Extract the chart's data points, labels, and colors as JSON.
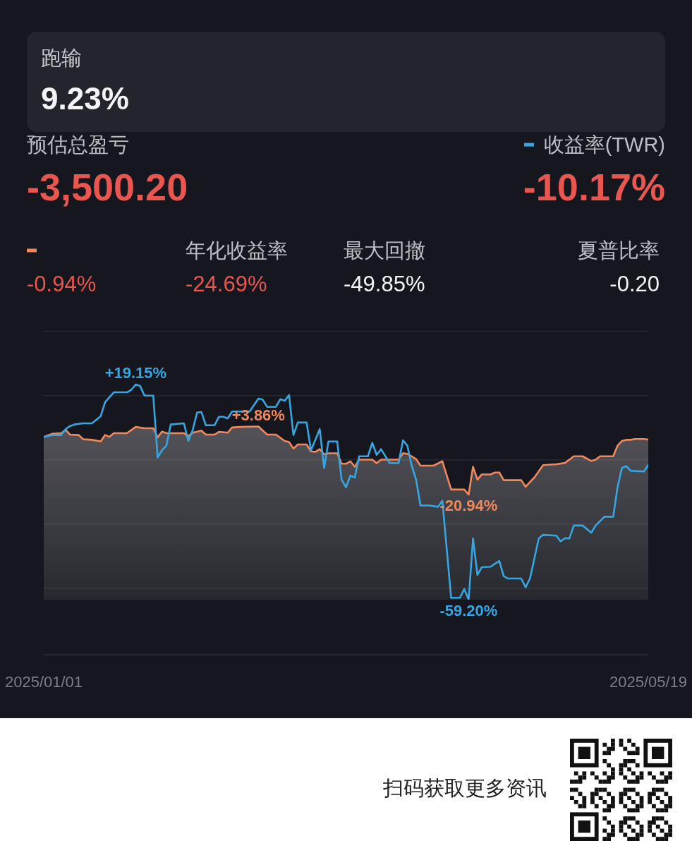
{
  "chart_data": {
    "type": "line",
    "legend": "top right",
    "grid": "y",
    "tick_labels": "x",
    "marker": "none",
    "xlim": [
      "2025-01-01",
      "2025-05-19"
    ],
    "xticks": [
      {
        "value": "2025-01-01",
        "label": "2025/01/01"
      },
      {
        "value": "2025-05-19",
        "label": "2025/05/19"
      }
    ],
    "ylim": [
      -59.2,
      38.4
    ],
    "yticks": [
      {
        "value": 38.4,
        "label": null
      },
      {
        "value": 15.1,
        "label": null
      },
      {
        "value": -8.3,
        "label": null
      },
      {
        "value": -31.7,
        "label": null
      },
      {
        "value": -55.1,
        "label": null
      }
    ],
    "annotations": [
      "跑输",
      "9.23%",
      "预估总盈亏",
      "-3,500.20",
      "-10.17%",
      "-0.94%",
      "年化收益率",
      "-24.69%",
      "最大回撤",
      "-49.85%",
      "夏普比率",
      "-0.20",
      "扫码获取更多资讯"
    ],
    "series": [
      {
        "name": "收益率(TWR)",
        "color": "#36a6e2",
        "x": [
          "2025-01-01",
          "2025-01-03",
          "2025-01-05",
          "2025-01-06",
          "2025-01-07",
          "2025-01-08",
          "2025-01-10",
          "2025-01-12",
          "2025-01-14",
          "2025-01-15",
          "2025-01-17",
          "2025-01-20",
          "2025-01-21",
          "2025-01-22",
          "2025-01-23",
          "2025-01-24",
          "2025-01-26",
          "2025-01-27",
          "2025-01-28",
          "2025-01-29",
          "2025-01-30",
          "2025-02-02",
          "2025-02-03",
          "2025-02-04",
          "2025-02-05",
          "2025-02-06",
          "2025-02-07",
          "2025-02-09",
          "2025-02-10",
          "2025-02-11",
          "2025-02-12",
          "2025-02-13",
          "2025-02-17",
          "2025-02-19",
          "2025-02-20",
          "2025-02-21",
          "2025-02-23",
          "2025-02-24",
          "2025-02-25",
          "2025-02-26",
          "2025-02-27",
          "2025-02-28",
          "2025-03-02",
          "2025-03-03",
          "2025-03-04",
          "2025-03-05",
          "2025-03-06",
          "2025-03-07",
          "2025-03-09",
          "2025-03-10",
          "2025-03-11",
          "2025-03-12",
          "2025-03-13",
          "2025-03-14",
          "2025-03-16",
          "2025-03-17",
          "2025-03-18",
          "2025-03-19",
          "2025-03-20",
          "2025-03-21",
          "2025-03-23",
          "2025-03-24",
          "2025-03-25",
          "2025-03-26",
          "2025-03-27",
          "2025-03-28",
          "2025-03-30",
          "2025-04-01",
          "2025-04-02",
          "2025-04-04",
          "2025-04-06",
          "2025-04-07",
          "2025-04-08",
          "2025-04-09",
          "2025-04-10",
          "2025-04-11",
          "2025-04-13",
          "2025-04-15",
          "2025-04-16",
          "2025-04-17",
          "2025-04-20",
          "2025-04-21",
          "2025-04-22",
          "2025-04-24",
          "2025-04-25",
          "2025-04-28",
          "2025-04-29",
          "2025-04-30",
          "2025-05-01",
          "2025-05-02",
          "2025-05-04",
          "2025-05-06",
          "2025-05-07",
          "2025-05-09",
          "2025-05-11",
          "2025-05-12",
          "2025-05-13",
          "2025-05-14",
          "2025-05-15",
          "2025-05-18",
          "2025-05-19"
        ],
        "values": [
          0,
          0.75,
          0.75,
          2.9,
          4.0,
          4.6,
          5.0,
          5.0,
          7.6,
          12.7,
          16.3,
          16.3,
          17.2,
          19.15,
          18.6,
          15.1,
          15.1,
          -7.4,
          -4.8,
          -3.1,
          4.6,
          5.0,
          -1.4,
          2.5,
          8.9,
          9.1,
          4.3,
          4.3,
          7.4,
          7.4,
          6.8,
          9.3,
          9.3,
          14.0,
          13.6,
          11.0,
          11.0,
          13.8,
          13.2,
          15.3,
          0.75,
          5.3,
          5.3,
          -4.8,
          -1.0,
          2.9,
          -11.2,
          -1.6,
          -1.6,
          -15.5,
          -18.3,
          -14.0,
          -14.8,
          -7.0,
          -7.0,
          -2.1,
          -6.5,
          -4.4,
          -7.0,
          -9.5,
          -9.5,
          -1.2,
          -3.1,
          -10.4,
          -15.5,
          -24.9,
          -24.9,
          -25.4,
          -23.2,
          -58.5,
          -58.5,
          -55.3,
          -59.2,
          -36.9,
          -50.2,
          -47.4,
          -47.2,
          -45.1,
          -50.6,
          -51.5,
          -51.5,
          -54.7,
          -51.5,
          -36.9,
          -35.6,
          -35.9,
          -38.0,
          -36.8,
          -36.9,
          -32.2,
          -32.2,
          -34.8,
          -32.2,
          -29.0,
          -29.0,
          -18.1,
          -11.2,
          -10.6,
          -12.3,
          -12.5,
          -10.17
        ],
        "value_labels": [
          null,
          null,
          null,
          null,
          null,
          null,
          null,
          null,
          null,
          null,
          null,
          null,
          null,
          "+19.15%",
          null,
          null,
          null,
          null,
          null,
          null,
          null,
          null,
          null,
          null,
          null,
          null,
          null,
          null,
          null,
          null,
          null,
          null,
          null,
          null,
          null,
          null,
          null,
          null,
          null,
          null,
          null,
          null,
          null,
          null,
          null,
          null,
          null,
          null,
          null,
          null,
          null,
          null,
          null,
          null,
          null,
          null,
          null,
          null,
          null,
          null,
          null,
          null,
          null,
          null,
          null,
          null,
          null,
          null,
          null,
          null,
          null,
          null,
          "-59.20%",
          null,
          null,
          null,
          null,
          null,
          null,
          null,
          null,
          null,
          null,
          null,
          null,
          null,
          null,
          null,
          null,
          null,
          null,
          null,
          null,
          null,
          null,
          null,
          null,
          null,
          null,
          null,
          null
        ]
      },
      {
        "color": "#f0885b",
        "x": [
          "2025-01-01",
          "2025-01-03",
          "2025-01-05",
          "2025-01-06",
          "2025-01-07",
          "2025-01-09",
          "2025-01-10",
          "2025-01-12",
          "2025-01-14",
          "2025-01-15",
          "2025-01-16",
          "2025-01-17",
          "2025-01-20",
          "2025-01-22",
          "2025-01-24",
          "2025-01-26",
          "2025-01-27",
          "2025-01-28",
          "2025-01-29",
          "2025-02-02",
          "2025-02-03",
          "2025-02-04",
          "2025-02-06",
          "2025-02-07",
          "2025-02-09",
          "2025-02-10",
          "2025-02-12",
          "2025-02-13",
          "2025-02-15",
          "2025-02-19",
          "2025-02-21",
          "2025-02-23",
          "2025-02-25",
          "2025-02-26",
          "2025-02-27",
          "2025-02-28",
          "2025-03-02",
          "2025-03-03",
          "2025-03-04",
          "2025-03-05",
          "2025-03-06",
          "2025-03-07",
          "2025-03-09",
          "2025-03-10",
          "2025-03-11",
          "2025-03-12",
          "2025-03-13",
          "2025-03-14",
          "2025-03-17",
          "2025-03-18",
          "2025-03-19",
          "2025-03-23",
          "2025-03-24",
          "2025-03-25",
          "2025-03-27",
          "2025-03-28",
          "2025-03-31",
          "2025-04-02",
          "2025-04-04",
          "2025-04-07",
          "2025-04-08",
          "2025-04-09",
          "2025-04-10",
          "2025-04-11",
          "2025-04-13",
          "2025-04-14",
          "2025-04-15",
          "2025-04-16",
          "2025-04-20",
          "2025-04-21",
          "2025-04-23",
          "2025-04-25",
          "2025-04-28",
          "2025-04-30",
          "2025-05-02",
          "2025-05-04",
          "2025-05-06",
          "2025-05-07",
          "2025-05-08",
          "2025-05-11",
          "2025-05-12",
          "2025-05-13",
          "2025-05-14",
          "2025-05-15",
          "2025-05-16",
          "2025-05-18",
          "2025-05-19"
        ],
        "values": [
          0,
          1.2,
          1.4,
          2.6,
          0.9,
          0.75,
          -0.8,
          -1.0,
          -1.6,
          0.75,
          0.1,
          1.4,
          1.4,
          3.7,
          3.2,
          3.2,
          -0.1,
          2.0,
          1.4,
          1.4,
          0.3,
          1.6,
          2.3,
          0.9,
          0.9,
          1.9,
          1.6,
          3.5,
          3.7,
          3.86,
          0.9,
          0.9,
          -1.4,
          -1.8,
          -4.2,
          -2.7,
          -2.7,
          -5.2,
          -5.4,
          -4.4,
          -6.3,
          -5.9,
          -5.9,
          -9.7,
          -9.7,
          -8.8,
          -10.8,
          -8.2,
          -8.2,
          -9.5,
          -8.2,
          -8.2,
          -5.9,
          -6.1,
          -8.0,
          -10.4,
          -10.4,
          -8.8,
          -19.1,
          -19.1,
          -20.94,
          -10.8,
          -15.5,
          -13.6,
          -13.6,
          -12.9,
          -12.9,
          -15.7,
          -15.7,
          -18.1,
          -14.7,
          -10.2,
          -9.9,
          -9.4,
          -7.0,
          -7.0,
          -8.7,
          -8.2,
          -7.0,
          -7.0,
          -3.1,
          -1.4,
          -1.0,
          -1.0,
          -0.7,
          -0.7,
          -0.94
        ],
        "upper": [
          0,
          1.2,
          1.4,
          2.6,
          0.9,
          0.75,
          -0.8,
          -1.0,
          -1.6,
          0.75,
          0.1,
          1.4,
          1.4,
          3.7,
          3.2,
          3.2,
          -0.1,
          2.0,
          1.4,
          1.4,
          0.3,
          1.6,
          2.3,
          0.9,
          0.9,
          1.9,
          1.6,
          3.5,
          3.7,
          3.86,
          0.9,
          0.9,
          -1.4,
          -1.8,
          -4.2,
          -2.7,
          -2.7,
          -5.2,
          -5.4,
          -4.4,
          -6.3,
          -5.9,
          -5.9,
          -9.7,
          -9.7,
          -8.8,
          -10.8,
          -8.2,
          -8.2,
          -9.5,
          -8.2,
          -8.2,
          -5.9,
          -6.1,
          -8.0,
          -10.4,
          -10.4,
          -8.8,
          -19.1,
          -19.1,
          -20.94,
          -10.8,
          -15.5,
          -13.6,
          -13.6,
          -12.9,
          -12.9,
          -15.7,
          -15.7,
          -18.1,
          -14.7,
          -10.2,
          -9.9,
          -9.4,
          -7.0,
          -7.0,
          -8.7,
          -8.2,
          -7.0,
          -7.0,
          -3.1,
          -1.4,
          -1.0,
          -1.0,
          -0.7,
          -0.7,
          -0.94
        ],
        "lower": [
          -59.2,
          -59.2,
          -59.2,
          -59.2,
          -59.2,
          -59.2,
          -59.2,
          -59.2,
          -59.2,
          -59.2,
          -59.2,
          -59.2,
          -59.2,
          -59.2,
          -59.2,
          -59.2,
          -59.2,
          -59.2,
          -59.2,
          -59.2,
          -59.2,
          -59.2,
          -59.2,
          -59.2,
          -59.2,
          -59.2,
          -59.2,
          -59.2,
          -59.2,
          -59.2,
          -59.2,
          -59.2,
          -59.2,
          -59.2,
          -59.2,
          -59.2,
          -59.2,
          -59.2,
          -59.2,
          -59.2,
          -59.2,
          -59.2,
          -59.2,
          -59.2,
          -59.2,
          -59.2,
          -59.2,
          -59.2,
          -59.2,
          -59.2,
          -59.2,
          -59.2,
          -59.2,
          -59.2,
          -59.2,
          -59.2,
          -59.2,
          -59.2,
          -59.2,
          -59.2,
          -59.2,
          -59.2,
          -59.2,
          -59.2,
          -59.2,
          -59.2,
          -59.2,
          -59.2,
          -59.2,
          -59.2,
          -59.2,
          -59.2,
          -59.2,
          -59.2,
          -59.2,
          -59.2,
          -59.2,
          -59.2,
          -59.2,
          -59.2,
          -59.2,
          -59.2,
          -59.2,
          -59.2,
          -59.2,
          -59.2,
          -59.2
        ],
        "value_labels": [
          null,
          null,
          null,
          null,
          null,
          null,
          null,
          null,
          null,
          null,
          null,
          null,
          null,
          null,
          null,
          null,
          null,
          null,
          null,
          null,
          null,
          null,
          null,
          null,
          null,
          null,
          null,
          null,
          null,
          "+3.86%",
          null,
          null,
          null,
          null,
          null,
          null,
          null,
          null,
          null,
          null,
          null,
          null,
          null,
          null,
          null,
          null,
          null,
          null,
          null,
          null,
          null,
          null,
          null,
          null,
          null,
          null,
          null,
          null,
          null,
          null,
          "-20.94%",
          null,
          null,
          null,
          null,
          null,
          null,
          null,
          null,
          null,
          null,
          null,
          null,
          null,
          null,
          null,
          null,
          null,
          null,
          null,
          null,
          null,
          null,
          null,
          null,
          null,
          null
        ]
      }
    ]
  }
}
